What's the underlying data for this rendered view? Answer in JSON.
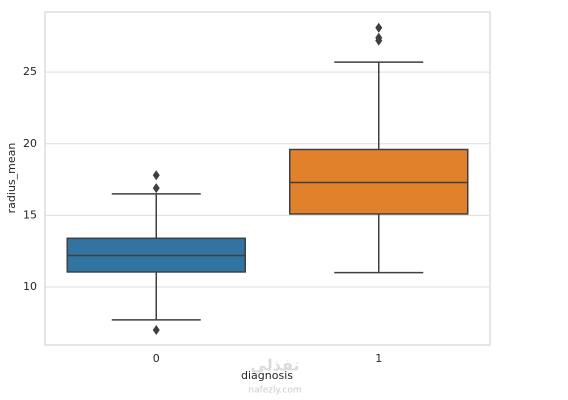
{
  "chart_data": {
    "type": "box",
    "xlabel": "diagnosis",
    "ylabel": "radius_mean",
    "categories": [
      "0",
      "1"
    ],
    "colors": [
      "#3274a1",
      "#e1812c"
    ],
    "boxes": [
      {
        "whislo": 7.7,
        "q1": 11.05,
        "med": 12.2,
        "q3": 13.4,
        "whishi": 16.5,
        "fliers": [
          17.8,
          16.9,
          7.0
        ]
      },
      {
        "whislo": 11.0,
        "q1": 15.1,
        "med": 17.3,
        "q3": 19.6,
        "whishi": 25.7,
        "fliers": [
          28.1,
          27.4,
          27.2
        ]
      }
    ],
    "ylim": [
      5.95,
      29.2
    ],
    "yticks": [
      10,
      15,
      20,
      25
    ],
    "grid": true
  },
  "watermark": {
    "brand": "نفذلي",
    "site": "nafezly.com"
  }
}
